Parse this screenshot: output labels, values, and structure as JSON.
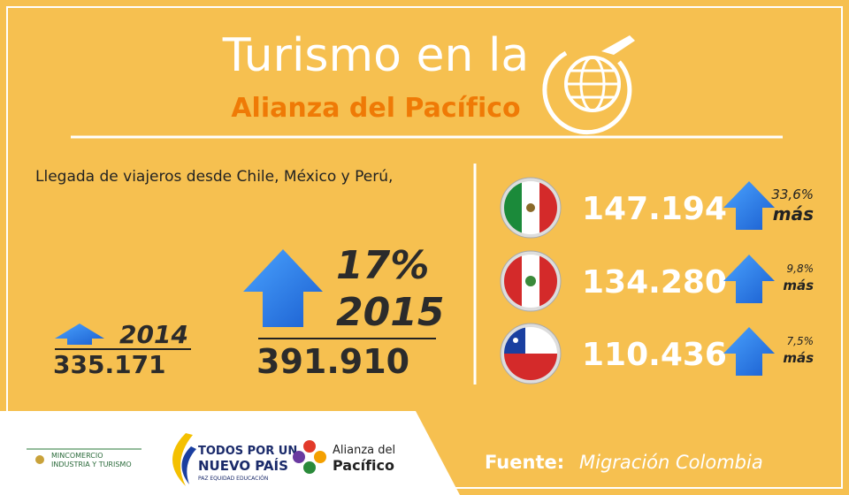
{
  "header": {
    "title": "Turismo en la",
    "subtitle": "Alianza del Pacífico"
  },
  "intro": "Llegada de viajeros desde Chile, México y Perú,",
  "totals": {
    "year_before": "2014",
    "value_before": "335.171",
    "growth": "17%",
    "year_after": "2015",
    "value_after": "391.910"
  },
  "countries": [
    {
      "value": "147.194",
      "growth": "33,6%",
      "more": "más"
    },
    {
      "value": "134.280",
      "growth": "9,8%",
      "more": "más"
    },
    {
      "value": "110.436",
      "growth": "7,5%",
      "more": "más"
    }
  ],
  "footer": {
    "logo1": [
      "MINCOMERCIO",
      "INDUSTRIA Y TURISMO"
    ],
    "logo2": [
      "TODOS POR UN",
      "NUEVO PAÍS",
      "PAZ  EQUIDAD  EDUCACIÓN"
    ],
    "logo3": [
      "Alianza del",
      "Pacífico"
    ],
    "source_label": "Fuente:",
    "source": "Migración Colombia"
  }
}
